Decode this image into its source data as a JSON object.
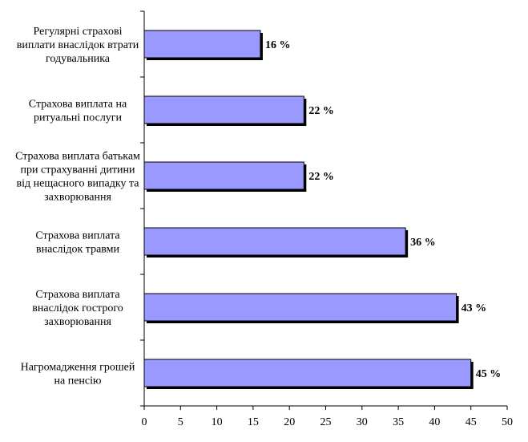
{
  "chart_data": {
    "type": "bar",
    "orientation": "horizontal",
    "categories": [
      [
        "Регулярні страхові",
        "виплати внаслідок втрати",
        "годувальника"
      ],
      [
        "Страхова виплата на",
        "ритуальні послуги"
      ],
      [
        "Страхова виплата батькам",
        "при страхуванні дитини",
        "від нещасного випадку та",
        "захворювання"
      ],
      [
        "Страхова виплата",
        "внаслідок травми"
      ],
      [
        "Страхова виплата",
        "внаслідок гострого",
        "захворювання"
      ],
      [
        "Нагромадження грошей",
        "на пенсію"
      ]
    ],
    "values": [
      16,
      22,
      22,
      36,
      43,
      45
    ],
    "data_labels": [
      "16 %",
      "22 %",
      "22 %",
      "36 %",
      "43 %",
      "45 %"
    ],
    "xlim": [
      0,
      50
    ],
    "xticks": [
      0,
      5,
      10,
      15,
      20,
      25,
      30,
      35,
      40,
      45,
      50
    ],
    "grid": false,
    "legend": "none",
    "bar_color": "#9999ff",
    "bar_edge_color": "#000000",
    "title": "",
    "xlabel": "",
    "ylabel": ""
  }
}
